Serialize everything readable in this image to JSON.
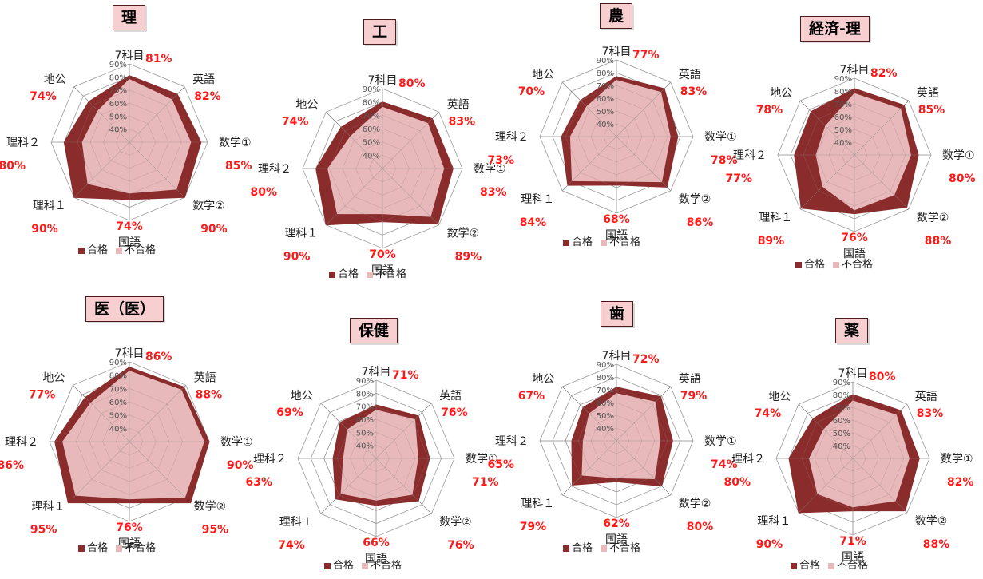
{
  "colors": {
    "pass": "#8b2c2c",
    "fail": "#e8b9ba",
    "pct_text": "#ff1a1a",
    "grid": "#9a9a9a"
  },
  "legend": {
    "pass": "合格",
    "fail": "不合格"
  },
  "chart_data": [
    {
      "type": "radar",
      "title": "理",
      "axes": [
        "7科目",
        "英語",
        "数学①",
        "数学②",
        "国語",
        "理科１",
        "理科２",
        "地公"
      ],
      "tick_labels": [
        "40%",
        "50%",
        "60%",
        "70%",
        "80%",
        "90%"
      ],
      "range": [
        30,
        90
      ],
      "series": [
        {
          "name": "合格",
          "values": [
            81,
            82,
            85,
            90,
            74,
            90,
            80,
            74
          ]
        },
        {
          "name": "不合格",
          "values": [
            78,
            76,
            77,
            81,
            69,
            75,
            66,
            64
          ]
        }
      ],
      "value_labels": [
        "81%",
        "82%",
        "85%",
        "90%",
        "74%",
        "90%",
        "80%",
        "74%"
      ]
    },
    {
      "type": "radar",
      "title": "工",
      "axes": [
        "7科目",
        "英語",
        "数学①",
        "数学②",
        "国語",
        "理科１",
        "理科２",
        "地公"
      ],
      "tick_labels": [
        "40%",
        "50%",
        "60%",
        "70%",
        "80%",
        "90%"
      ],
      "range": [
        30,
        90
      ],
      "series": [
        {
          "name": "合格",
          "values": [
            80,
            83,
            83,
            89,
            70,
            90,
            80,
            74
          ]
        },
        {
          "name": "不合格",
          "values": [
            76,
            78,
            76,
            81,
            64,
            78,
            71,
            64
          ]
        }
      ],
      "value_labels": [
        "80%",
        "83%",
        "83%",
        "89%",
        "70%",
        "90%",
        "80%",
        "74%"
      ]
    },
    {
      "type": "radar",
      "title": "農",
      "axes": [
        "7科目",
        "英語",
        "数学①",
        "数学②",
        "国語",
        "理科１",
        "理科２",
        "地公"
      ],
      "tick_labels": [
        "40%",
        "50%",
        "60%",
        "70%",
        "80%",
        "90%"
      ],
      "range": [
        30,
        90
      ],
      "series": [
        {
          "name": "合格",
          "values": [
            77,
            83,
            78,
            86,
            68,
            84,
            73,
            70
          ]
        },
        {
          "name": "不合格",
          "values": [
            74,
            79,
            72,
            80,
            65,
            79,
            66,
            63
          ]
        }
      ],
      "value_labels": [
        "77%",
        "83%",
        "78%",
        "86%",
        "68%",
        "84%",
        "73%",
        "70%"
      ]
    },
    {
      "type": "radar",
      "title": "経済-理",
      "axes": [
        "7科目",
        "英語",
        "数学①",
        "数学②",
        "国語",
        "理科１",
        "理科２",
        "地公"
      ],
      "tick_labels": [
        "40%",
        "50%",
        "60%",
        "70%",
        "80%",
        "90%"
      ],
      "range": [
        30,
        90
      ],
      "series": [
        {
          "name": "合格",
          "values": [
            82,
            85,
            80,
            88,
            76,
            89,
            77,
            78
          ]
        },
        {
          "name": "不合格",
          "values": [
            78,
            81,
            74,
            74,
            73,
            65,
            60,
            62
          ]
        }
      ],
      "value_labels": [
        "82%",
        "85%",
        "80%",
        "88%",
        "76%",
        "89%",
        "77%",
        "78%"
      ]
    },
    {
      "type": "radar",
      "title": "医（医）",
      "axes": [
        "7科目",
        "英語",
        "数学①",
        "数学②",
        "国語",
        "理科１",
        "理科２",
        "地公"
      ],
      "tick_labels": [
        "40%",
        "50%",
        "60%",
        "70%",
        "80%",
        "90%"
      ],
      "range": [
        30,
        90
      ],
      "series": [
        {
          "name": "合格",
          "values": [
            86,
            88,
            90,
            95,
            76,
            95,
            86,
            77
          ]
        },
        {
          "name": "不合格",
          "values": [
            83,
            85,
            86,
            89,
            73,
            87,
            80,
            71
          ]
        }
      ],
      "value_labels": [
        "86%",
        "88%",
        "90%",
        "95%",
        "76%",
        "95%",
        "86%",
        "77%"
      ]
    },
    {
      "type": "radar",
      "title": "保健",
      "axes": [
        "7科目",
        "英語",
        "数学①",
        "数学②",
        "国語",
        "理科１",
        "理科２",
        "地公"
      ],
      "tick_labels": [
        "40%",
        "50%",
        "60%",
        "70%",
        "80%",
        "90%"
      ],
      "range": [
        30,
        90
      ],
      "series": [
        {
          "name": "合格",
          "values": [
            71,
            76,
            71,
            76,
            66,
            74,
            63,
            69
          ]
        },
        {
          "name": "不合格",
          "values": [
            67,
            72,
            62,
            69,
            62,
            68,
            55,
            61
          ]
        }
      ],
      "value_labels": [
        "71%",
        "76%",
        "71%",
        "76%",
        "66%",
        "74%",
        "63%",
        "69%"
      ]
    },
    {
      "type": "radar",
      "title": "歯",
      "axes": [
        "7科目",
        "英語",
        "数学①",
        "数学②",
        "国語",
        "理科１",
        "理科２",
        "地公"
      ],
      "tick_labels": [
        "40%",
        "50%",
        "60%",
        "70%",
        "80%",
        "90%"
      ],
      "range": [
        30,
        90
      ],
      "series": [
        {
          "name": "合格",
          "values": [
            72,
            79,
            74,
            80,
            62,
            79,
            65,
            67
          ]
        },
        {
          "name": "不合格",
          "values": [
            67,
            73,
            64,
            72,
            59,
            68,
            56,
            60
          ]
        }
      ],
      "value_labels": [
        "72%",
        "79%",
        "74%",
        "80%",
        "62%",
        "79%",
        "65%",
        "67%"
      ]
    },
    {
      "type": "radar",
      "title": "薬",
      "axes": [
        "7科目",
        "英語",
        "数学①",
        "数学②",
        "国語",
        "理科１",
        "理科２",
        "地公"
      ],
      "tick_labels": [
        "40%",
        "50%",
        "60%",
        "70%",
        "80%",
        "90%"
      ],
      "range": [
        30,
        90
      ],
      "series": [
        {
          "name": "合格",
          "values": [
            80,
            83,
            82,
            88,
            71,
            90,
            80,
            74
          ]
        },
        {
          "name": "不合格",
          "values": [
            75,
            78,
            74,
            77,
            68,
            69,
            64,
            62
          ]
        }
      ],
      "value_labels": [
        "80%",
        "83%",
        "82%",
        "88%",
        "71%",
        "90%",
        "80%",
        "74%"
      ]
    }
  ]
}
